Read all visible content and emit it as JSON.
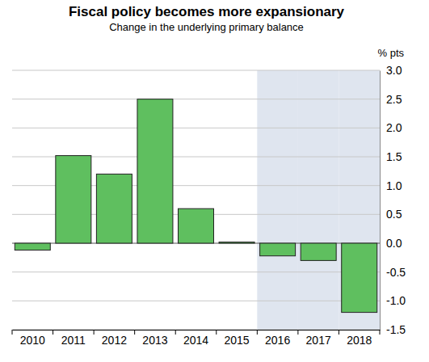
{
  "chart_data": {
    "type": "bar",
    "title": "Fiscal policy becomes more expansionary",
    "subtitle": "Change in the underlying primary balance",
    "y_label": "% pts",
    "categories": [
      "2010",
      "2011",
      "2012",
      "2013",
      "2014",
      "2015",
      "2016",
      "2017",
      "2018"
    ],
    "values": [
      -0.12,
      1.52,
      1.2,
      2.5,
      0.6,
      0.02,
      -0.22,
      -0.3,
      -1.2
    ],
    "color": "#5fbf5f",
    "shaded_categories": [
      "2016",
      "2017",
      "2018"
    ],
    "ylim": [
      -1.5,
      3
    ],
    "yticks": [
      {
        "value": -1.5,
        "label": "-1.5"
      },
      {
        "value": -1,
        "label": "-1.0"
      },
      {
        "value": -0.5,
        "label": "-0.5"
      },
      {
        "value": 0,
        "label": "0.0"
      },
      {
        "value": 0.5,
        "label": "0.5"
      },
      {
        "value": 1,
        "label": "1.0"
      },
      {
        "value": 1.5,
        "label": "1.5"
      },
      {
        "value": 2,
        "label": "2.0"
      },
      {
        "value": 2.5,
        "label": "2.5"
      },
      {
        "value": 3,
        "label": "3.0"
      }
    ],
    "grid": true
  }
}
